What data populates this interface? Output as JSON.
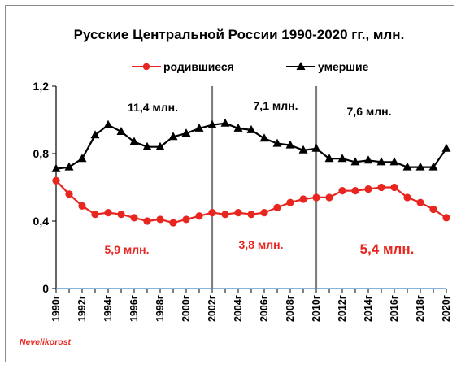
{
  "chart_data": {
    "type": "line",
    "title": "Русские Центральной России 1990-2020 гг., млн.",
    "x": [
      1990,
      1991,
      1992,
      1993,
      1994,
      1995,
      1996,
      1997,
      1998,
      1999,
      2000,
      2001,
      2002,
      2003,
      2004,
      2005,
      2006,
      2007,
      2008,
      2009,
      2010,
      2011,
      2012,
      2013,
      2014,
      2015,
      2016,
      2017,
      2018,
      2019,
      2020
    ],
    "x_tick_labels": [
      "1990г",
      "1992г",
      "1994г",
      "1996г",
      "1998г",
      "2000г",
      "2002г",
      "2004г",
      "2006г",
      "2008г",
      "2010г",
      "2012г",
      "2014г",
      "2016г",
      "2018г",
      "2020г"
    ],
    "ylim": [
      0,
      1.2
    ],
    "y_tick_labels": [
      "0",
      "0,4",
      "0,8",
      "1,2"
    ],
    "series": [
      {
        "name": "родившиеся",
        "color": "#e8251f",
        "marker": "circle",
        "values": [
          0.64,
          0.56,
          0.49,
          0.44,
          0.45,
          0.44,
          0.42,
          0.4,
          0.41,
          0.39,
          0.41,
          0.43,
          0.45,
          0.44,
          0.45,
          0.44,
          0.45,
          0.48,
          0.51,
          0.53,
          0.54,
          0.54,
          0.58,
          0.58,
          0.59,
          0.6,
          0.6,
          0.54,
          0.51,
          0.47,
          0.42
        ]
      },
      {
        "name": "умершие",
        "color": "#000000",
        "marker": "triangle",
        "values": [
          0.71,
          0.72,
          0.77,
          0.91,
          0.97,
          0.93,
          0.87,
          0.84,
          0.84,
          0.9,
          0.92,
          0.95,
          0.97,
          0.98,
          0.95,
          0.94,
          0.89,
          0.86,
          0.85,
          0.82,
          0.83,
          0.77,
          0.77,
          0.75,
          0.76,
          0.75,
          0.75,
          0.72,
          0.72,
          0.72,
          0.83
        ]
      }
    ],
    "period_dividers_x": [
      2002,
      2010
    ],
    "annotations": [
      {
        "text": "11,4 млн.",
        "series": "умершие",
        "period": "1990-2002"
      },
      {
        "text": "7,1 млн.",
        "series": "умершие",
        "period": "2002-2010"
      },
      {
        "text": "7,6 млн.",
        "series": "умершие",
        "period": "2010-2020"
      },
      {
        "text": "5,9  млн.",
        "series": "родившиеся",
        "period": "1990-2002"
      },
      {
        "text": "3,8 млн.",
        "series": "родившиеся",
        "period": "2002-2010"
      },
      {
        "text": "5,4 млн.",
        "series": "родившиеся",
        "period": "2010-2020"
      }
    ],
    "legend_position": "top",
    "grid": false
  },
  "credit": "Nevelikorost"
}
